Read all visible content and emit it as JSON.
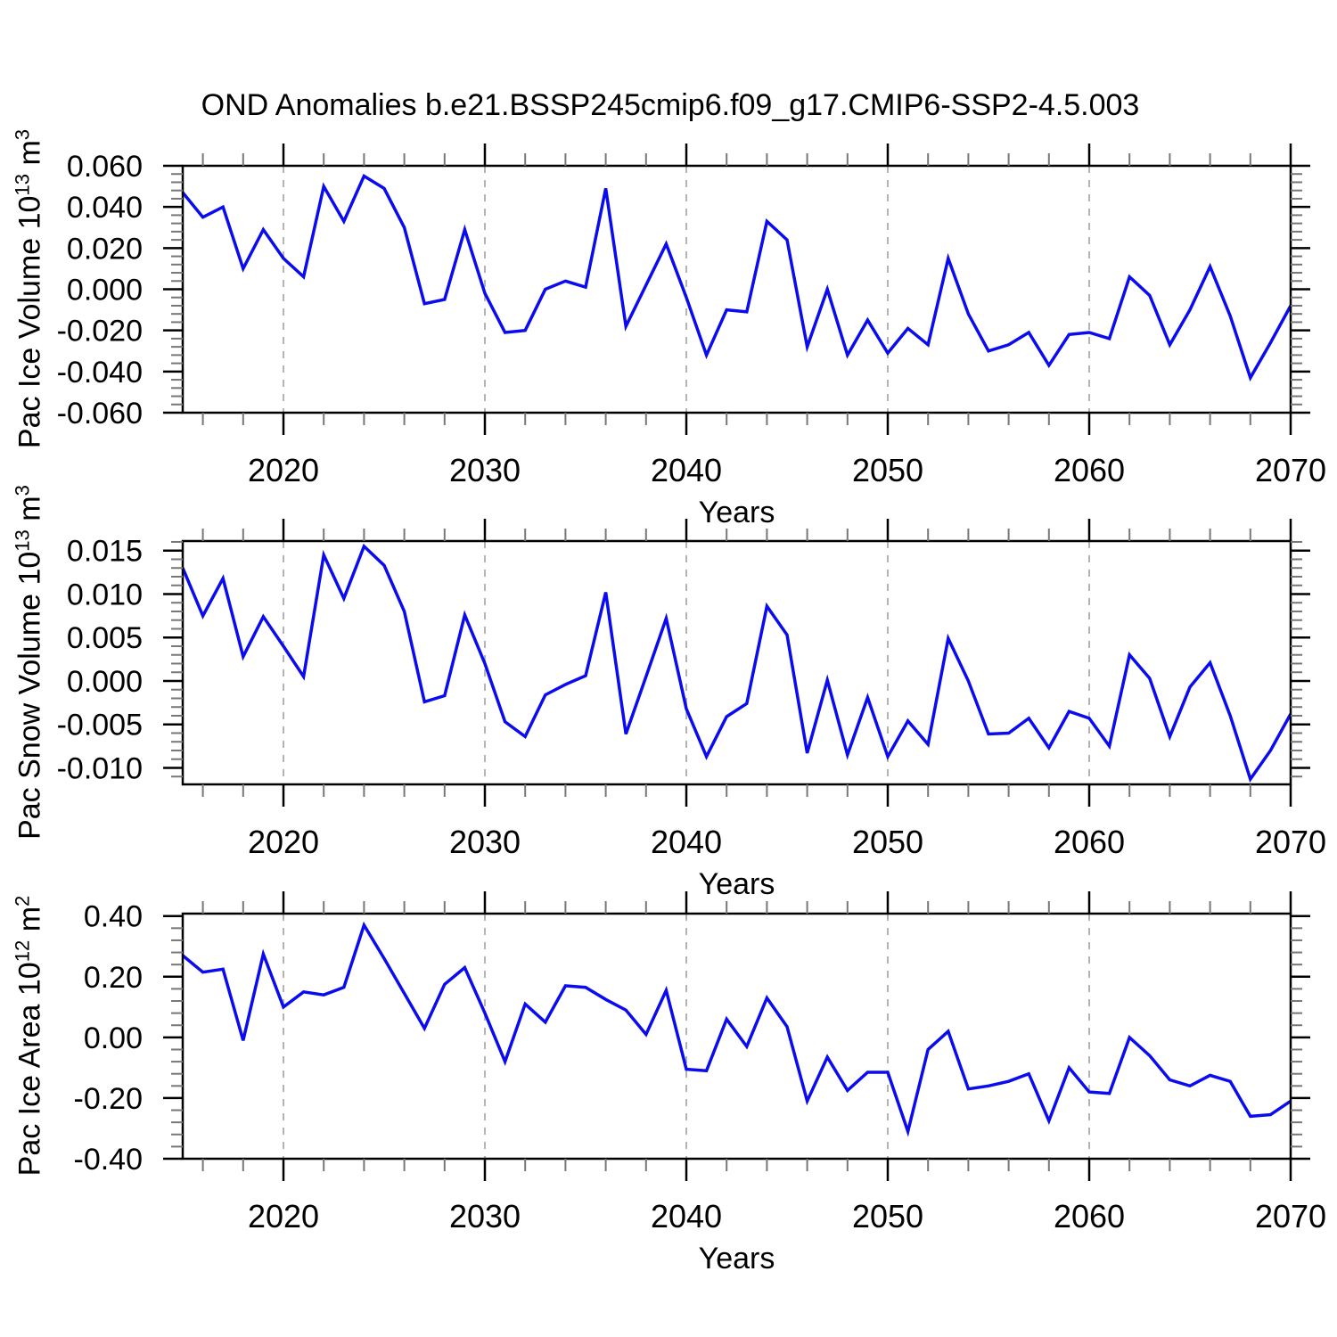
{
  "title": "OND Anomalies b.e21.BSSP245cmip6.f09_g17.CMIP6-SSP2-4.5.003",
  "colors": {
    "line": "#0b0bf0",
    "grid": "#b4b4b4",
    "minor_tick": "#777777",
    "axis": "#000000",
    "background": "#ffffff"
  },
  "chart_data": [
    {
      "type": "line",
      "ylabel": "Pac Ice Volume 10^13 m^3",
      "ylabel_parts": [
        {
          "t": "Pac Ice Volume 10"
        },
        {
          "t": "13",
          "sup": true
        },
        {
          "t": " m"
        },
        {
          "t": "3",
          "sup": true
        }
      ],
      "xlabel": "Years",
      "xlim": [
        2015,
        2070
      ],
      "ylim": [
        -0.06,
        0.06
      ],
      "xticks": [
        2020,
        2030,
        2040,
        2050,
        2060,
        2070
      ],
      "xtick_labels": [
        "2020",
        "2030",
        "2040",
        "2050",
        "2060",
        "2070"
      ],
      "x_minor_step": 2,
      "grid_years": [
        2020,
        2030,
        2040,
        2050,
        2060
      ],
      "ytick_values": [
        0.06,
        0.04,
        0.02,
        0.0,
        -0.02,
        -0.04,
        -0.06
      ],
      "ytick_labels": [
        "0.060",
        "0.040",
        "0.020",
        "0.000",
        "-0.020",
        "-0.040",
        "-0.060"
      ],
      "y_minor_step": 0.004,
      "x": [
        2015,
        2016,
        2017,
        2018,
        2019,
        2020,
        2021,
        2022,
        2023,
        2024,
        2025,
        2026,
        2027,
        2028,
        2029,
        2030,
        2031,
        2032,
        2033,
        2034,
        2035,
        2036,
        2037,
        2038,
        2039,
        2040,
        2041,
        2042,
        2043,
        2044,
        2045,
        2046,
        2047,
        2048,
        2049,
        2050,
        2051,
        2052,
        2053,
        2054,
        2055,
        2056,
        2057,
        2058,
        2059,
        2060,
        2061,
        2062,
        2063,
        2064,
        2065,
        2066,
        2067,
        2068,
        2069,
        2070
      ],
      "values": [
        0.047,
        0.035,
        0.04,
        0.01,
        0.029,
        0.015,
        0.006,
        0.05,
        0.033,
        0.055,
        0.049,
        0.03,
        -0.007,
        -0.005,
        0.029,
        -0.002,
        -0.021,
        -0.02,
        0.0,
        0.004,
        0.001,
        0.049,
        -0.018,
        0.002,
        0.022,
        -0.004,
        -0.032,
        -0.01,
        -0.011,
        0.033,
        0.024,
        -0.028,
        0.0,
        -0.032,
        -0.015,
        -0.031,
        -0.019,
        -0.027,
        0.015,
        -0.012,
        -0.03,
        -0.027,
        -0.021,
        -0.037,
        -0.022,
        -0.021,
        -0.024,
        0.006,
        -0.003,
        -0.027,
        -0.01,
        0.011,
        -0.013,
        -0.043,
        -0.026,
        -0.008
      ]
    },
    {
      "type": "line",
      "ylabel": "Pac Snow Volume 10^13 m^3",
      "ylabel_parts": [
        {
          "t": "Pac Snow Volume 10"
        },
        {
          "t": "13",
          "sup": true
        },
        {
          "t": " m"
        },
        {
          "t": "3",
          "sup": true
        }
      ],
      "xlabel": "Years",
      "xlim": [
        2015,
        2070
      ],
      "ylim": [
        -0.0119,
        0.0161
      ],
      "xticks": [
        2020,
        2030,
        2040,
        2050,
        2060,
        2070
      ],
      "xtick_labels": [
        "2020",
        "2030",
        "2040",
        "2050",
        "2060",
        "2070"
      ],
      "x_minor_step": 2,
      "grid_years": [
        2020,
        2030,
        2040,
        2050,
        2060
      ],
      "ytick_values": [
        0.015,
        0.01,
        0.005,
        0.0,
        -0.005,
        -0.01
      ],
      "ytick_labels": [
        "0.015",
        "0.010",
        "0.005",
        "0.000",
        "-0.005",
        "-0.010"
      ],
      "y_minor_step": 0.001,
      "x": [
        2015,
        2016,
        2017,
        2018,
        2019,
        2020,
        2021,
        2022,
        2023,
        2024,
        2025,
        2026,
        2027,
        2028,
        2029,
        2030,
        2031,
        2032,
        2033,
        2034,
        2035,
        2036,
        2037,
        2038,
        2039,
        2040,
        2041,
        2042,
        2043,
        2044,
        2045,
        2046,
        2047,
        2048,
        2049,
        2050,
        2051,
        2052,
        2053,
        2054,
        2055,
        2056,
        2057,
        2058,
        2059,
        2060,
        2061,
        2062,
        2063,
        2064,
        2065,
        2066,
        2067,
        2068,
        2069,
        2070
      ],
      "values": [
        0.013,
        0.0075,
        0.0118,
        0.0028,
        0.0074,
        0.004,
        0.0005,
        0.0145,
        0.0095,
        0.0155,
        0.0133,
        0.008,
        -0.0024,
        -0.0017,
        0.0076,
        0.002,
        -0.0047,
        -0.0064,
        -0.0016,
        -0.0004,
        0.0006,
        0.0102,
        -0.0061,
        0.0005,
        0.0072,
        -0.0032,
        -0.0087,
        -0.0041,
        -0.0026,
        0.0086,
        0.0053,
        -0.0083,
        0.0001,
        -0.0085,
        -0.0019,
        -0.0087,
        -0.0046,
        -0.0073,
        0.0049,
        0.0,
        -0.0061,
        -0.006,
        -0.0043,
        -0.0077,
        -0.0035,
        -0.0043,
        -0.0075,
        0.003,
        0.0003,
        -0.0064,
        -0.0007,
        0.0021,
        -0.004,
        -0.0113,
        -0.008,
        -0.0038
      ]
    },
    {
      "type": "line",
      "ylabel": "Pac Ice Area 10^12 m^2",
      "ylabel_parts": [
        {
          "t": "Pac Ice Area 10"
        },
        {
          "t": "12",
          "sup": true
        },
        {
          "t": " m"
        },
        {
          "t": "2",
          "sup": true
        }
      ],
      "xlabel": "Years",
      "xlim": [
        2015,
        2070
      ],
      "ylim": [
        -0.4,
        0.408
      ],
      "xticks": [
        2020,
        2030,
        2040,
        2050,
        2060,
        2070
      ],
      "xtick_labels": [
        "2020",
        "2030",
        "2040",
        "2050",
        "2060",
        "2070"
      ],
      "x_minor_step": 2,
      "grid_years": [
        2020,
        2030,
        2040,
        2050,
        2060
      ],
      "ytick_values": [
        0.4,
        0.2,
        0.0,
        -0.2,
        -0.4
      ],
      "ytick_labels": [
        "0.40",
        "0.20",
        "0.00",
        "-0.20",
        "-0.40"
      ],
      "y_minor_step": 0.04,
      "x": [
        2015,
        2016,
        2017,
        2018,
        2019,
        2020,
        2021,
        2022,
        2023,
        2024,
        2025,
        2026,
        2027,
        2028,
        2029,
        2030,
        2031,
        2032,
        2033,
        2034,
        2035,
        2036,
        2037,
        2038,
        2039,
        2040,
        2041,
        2042,
        2043,
        2044,
        2045,
        2046,
        2047,
        2048,
        2049,
        2050,
        2051,
        2052,
        2053,
        2054,
        2055,
        2056,
        2057,
        2058,
        2059,
        2060,
        2061,
        2062,
        2063,
        2064,
        2065,
        2066,
        2067,
        2068,
        2069,
        2070
      ],
      "values": [
        0.27,
        0.215,
        0.225,
        -0.01,
        0.275,
        0.1,
        0.15,
        0.14,
        0.165,
        0.37,
        0.26,
        0.145,
        0.03,
        0.175,
        0.23,
        0.08,
        -0.08,
        0.11,
        0.05,
        0.17,
        0.165,
        0.125,
        0.09,
        0.01,
        0.155,
        -0.105,
        -0.11,
        0.06,
        -0.03,
        0.13,
        0.035,
        -0.21,
        -0.065,
        -0.175,
        -0.115,
        -0.115,
        -0.31,
        -0.04,
        0.02,
        -0.17,
        -0.16,
        -0.145,
        -0.12,
        -0.275,
        -0.1,
        -0.18,
        -0.185,
        0.0,
        -0.06,
        -0.14,
        -0.16,
        -0.125,
        -0.145,
        -0.26,
        -0.255,
        -0.21
      ]
    }
  ]
}
